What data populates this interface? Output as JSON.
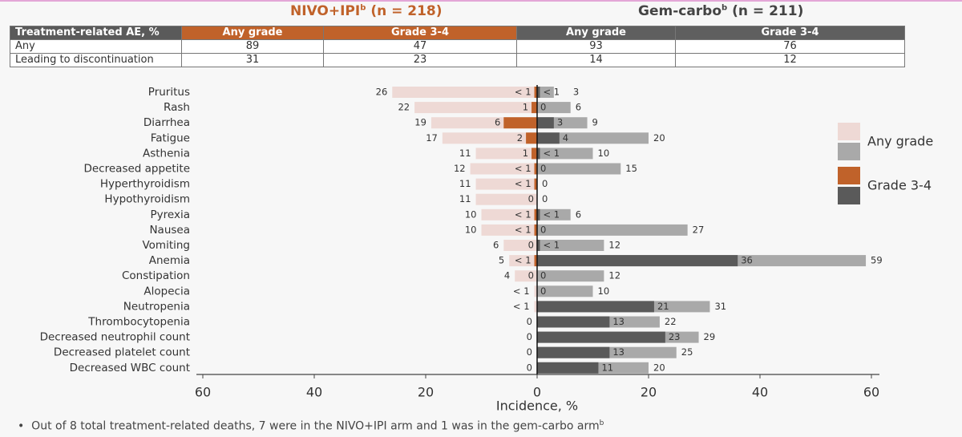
{
  "header": {
    "arms": [
      {
        "name": "NIVO+IPI",
        "sup": "b",
        "n": "(n = 218)"
      },
      {
        "name": "Gem-carbo",
        "sup": "b",
        "n": "(n = 211)"
      }
    ]
  },
  "table": {
    "columns": [
      "Treatment-related AE, %",
      "Any grade",
      "Grade 3-4",
      "Any grade",
      "Grade 3-4"
    ],
    "rows": [
      [
        "Any",
        89,
        47,
        93,
        76
      ],
      [
        "Leading to discontinuation",
        31,
        23,
        14,
        12
      ]
    ]
  },
  "chart_data": {
    "type": "butterfly-bar",
    "x_label": "Incidence, %",
    "xlim": [
      -60,
      60
    ],
    "xticks": [
      {
        "value": -60,
        "label": "60"
      },
      {
        "value": -40,
        "label": "40"
      },
      {
        "value": -20,
        "label": "20"
      },
      0,
      20,
      40,
      60
    ],
    "categories": [
      "Pruritus",
      "Rash",
      "Diarrhea",
      "Fatigue",
      "Asthenia",
      "Decreased appetite",
      "Hyperthyroidism",
      "Hypothyroidism",
      "Pyrexia",
      "Nausea",
      "Vomiting",
      "Anemia",
      "Constipation",
      "Alopecia",
      "Neutropenia",
      "Thrombocytopenia",
      "Decreased neutrophil count",
      "Decreased platelet count",
      "Decreased WBC count"
    ],
    "legend": [
      {
        "name": "Any grade",
        "colors": [
          "#eed9d5",
          "#a9a9a9"
        ]
      },
      {
        "name": "Grade 3-4",
        "colors": [
          "#c0622a",
          "#5a5a5a"
        ]
      }
    ],
    "series": [
      {
        "side": "left",
        "values": [
          26,
          22,
          19,
          17,
          11,
          12,
          11,
          11,
          10,
          10,
          6,
          5,
          4,
          0.5,
          0.5,
          0,
          0,
          0,
          0
        ],
        "value_labels": [
          "26",
          "22",
          "19",
          "17",
          "11",
          "12",
          "11",
          "11",
          "10",
          "10",
          "6",
          "5",
          "4",
          "< 1",
          "< 1",
          "0",
          "0",
          "0",
          "0"
        ],
        "severe": [
          0.5,
          1,
          6,
          2,
          1,
          0.5,
          0.5,
          0,
          0.5,
          0.5,
          0,
          0.5,
          0,
          null,
          null,
          null,
          null,
          null,
          null
        ],
        "severe_labels": [
          "< 1",
          "1",
          "6",
          "2",
          "1",
          "< 1",
          "< 1",
          "0",
          "< 1",
          "< 1",
          "0",
          "< 1",
          "0",
          null,
          null,
          null,
          null,
          null,
          null
        ]
      },
      {
        "side": "right",
        "values": [
          3,
          6,
          9,
          20,
          10,
          15,
          0,
          0,
          6,
          27,
          12,
          59,
          12,
          10,
          31,
          22,
          29,
          25,
          20
        ],
        "value_labels": [
          "3",
          "6",
          "9",
          "20",
          "10",
          "15",
          "0",
          "0",
          "6",
          "27",
          "12",
          "59",
          "12",
          "10",
          "31",
          "22",
          "29",
          "25",
          "20"
        ],
        "severe": [
          0.5,
          0,
          3,
          4,
          0.5,
          0,
          null,
          null,
          0.5,
          0,
          0.5,
          36,
          0,
          0,
          21,
          13,
          23,
          13,
          11
        ],
        "severe_labels": [
          "< 1",
          "0",
          "3",
          "4",
          "< 1",
          "0",
          null,
          null,
          "< 1",
          "0",
          "< 1",
          "36",
          "0",
          "0",
          "21",
          "13",
          "23",
          "13",
          "11"
        ]
      }
    ]
  },
  "footnote": {
    "text": "Out of 8 total treatment-related deaths, 7 were in the NIVO+IPI arm and 1 was in the gem-carbo arm",
    "sup": "b"
  }
}
